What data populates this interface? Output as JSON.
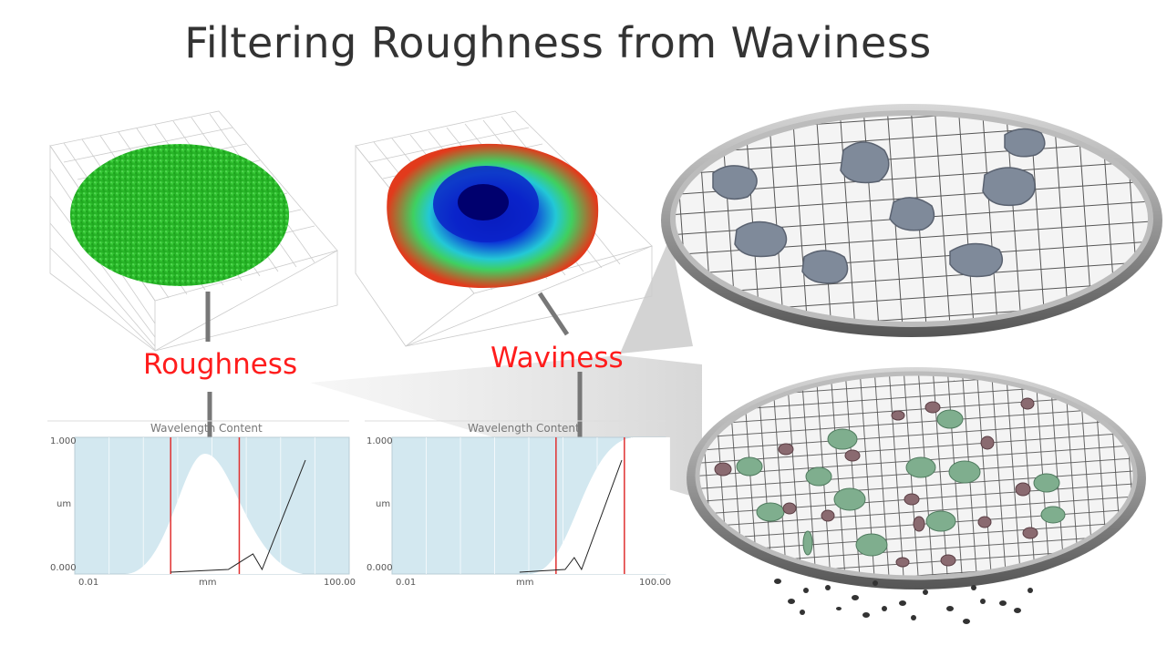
{
  "title": "Filtering Roughness from Waviness",
  "labels": {
    "roughness": "Roughness",
    "waviness": "Waviness"
  },
  "colors": {
    "label": "#ff1c1c",
    "title": "#333333",
    "chart_bg": "#d3e8f0",
    "cutoff": "#e03030"
  },
  "chart_data": [
    {
      "type": "area",
      "title": "Wavelength Content",
      "xlabel": "mm",
      "ylabel": "um",
      "xtick_labels": [
        "0.01",
        "100.00"
      ],
      "ytick_labels": [
        "1.000",
        "0.000"
      ],
      "y_tick_values": [
        1.0,
        0.0
      ],
      "x_tick_values": [
        0.01,
        100.0
      ],
      "x_log_scale": true,
      "ylim": [
        0,
        1
      ],
      "cutoffs": [
        0.25,
        2.5
      ],
      "passband": "roughness"
    },
    {
      "type": "area",
      "title": "Wavelength Content",
      "xlabel": "mm",
      "ylabel": "um",
      "xtick_labels": [
        "0.01",
        "100.00"
      ],
      "ytick_labels": [
        "1.000",
        "0.000"
      ],
      "y_tick_values": [
        1.0,
        0.0
      ],
      "x_tick_values": [
        0.01,
        100.0
      ],
      "x_log_scale": true,
      "ylim": [
        0,
        1
      ],
      "cutoffs": [
        2.5,
        25
      ],
      "passband": "waviness"
    }
  ],
  "icons": [
    "roughness-surface-plot",
    "waviness-surface-plot",
    "sieve-with-stones-icon",
    "sieve-with-pebbles-icon"
  ]
}
